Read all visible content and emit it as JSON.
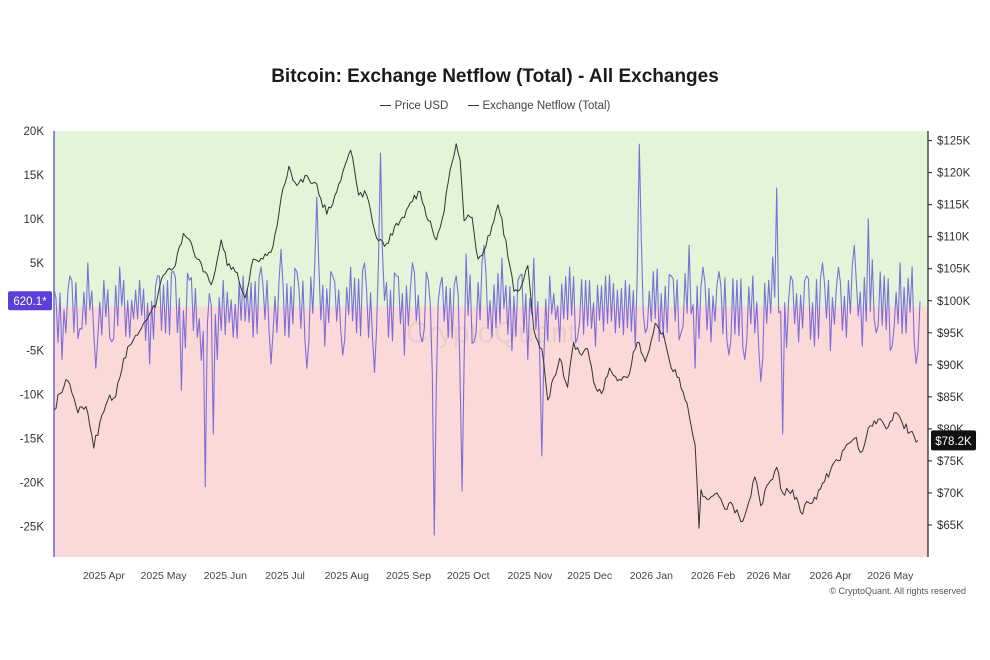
{
  "chart_data": {
    "type": "line",
    "title": "Bitcoin: Exchange Netflow (Total) - All Exchanges",
    "legend_position": "top-center",
    "grid": false,
    "series": [
      {
        "name": "Price USD",
        "axis": "right",
        "color": "#333333"
      },
      {
        "name": "Exchange Netflow (Total)",
        "axis": "left",
        "color": "#6f62d6"
      }
    ],
    "x_axis": {
      "range": [
        "2025-03-18",
        "2026-05-31"
      ],
      "ticks": [
        {
          "date": "2025-04-01",
          "label": "2025 Apr"
        },
        {
          "date": "2025-05-01",
          "label": "2025 May"
        },
        {
          "date": "2025-06-01",
          "label": "2025 Jun"
        },
        {
          "date": "2025-07-01",
          "label": "2025 Jul"
        },
        {
          "date": "2025-08-01",
          "label": "2025 Aug"
        },
        {
          "date": "2025-09-01",
          "label": "2025 Sep"
        },
        {
          "date": "2025-10-01",
          "label": "2025 Oct"
        },
        {
          "date": "2025-11-01",
          "label": "2025 Nov"
        },
        {
          "date": "2025-12-01",
          "label": "2025 Dec"
        },
        {
          "date": "2026-01-01",
          "label": "2026 Jan"
        },
        {
          "date": "2026-02-01",
          "label": "2026 Feb"
        },
        {
          "date": "2026-03-01",
          "label": "2026 Mar"
        },
        {
          "date": "2026-04-01",
          "label": "2026 Apr"
        },
        {
          "date": "2026-05-01",
          "label": "2026 May"
        }
      ]
    },
    "y_left": {
      "range": [
        -28500,
        20000
      ],
      "ticks": [
        {
          "value": 20000,
          "label": "20K"
        },
        {
          "value": 15000,
          "label": "15K"
        },
        {
          "value": 10000,
          "label": "10K"
        },
        {
          "value": 5000,
          "label": "5K"
        },
        {
          "value": -5000,
          "label": "-5K"
        },
        {
          "value": -10000,
          "label": "-10K"
        },
        {
          "value": -15000,
          "label": "-15K"
        },
        {
          "value": -20000,
          "label": "-20K"
        },
        {
          "value": -25000,
          "label": "-25K"
        }
      ],
      "zero_band": {
        "above_color": "#e3f5d8",
        "below_color": "#fcd9d9",
        "split_value": 0
      }
    },
    "y_right": {
      "range": [
        60000,
        126500
      ],
      "ticks": [
        {
          "value": 125000,
          "label": "$125K"
        },
        {
          "value": 120000,
          "label": "$120K"
        },
        {
          "value": 115000,
          "label": "$115K"
        },
        {
          "value": 110000,
          "label": "$110K"
        },
        {
          "value": 105000,
          "label": "$105K"
        },
        {
          "value": 100000,
          "label": "$100K"
        },
        {
          "value": 95000,
          "label": "$95K"
        },
        {
          "value": 90000,
          "label": "$90K"
        },
        {
          "value": 85000,
          "label": "$85K"
        },
        {
          "value": 80000,
          "label": "$80K"
        },
        {
          "value": 75000,
          "label": "$75K"
        },
        {
          "value": 70000,
          "label": "$70K"
        },
        {
          "value": 65000,
          "label": "$65K"
        }
      ]
    },
    "badges": {
      "netflow_last": {
        "label": "620.1*",
        "value": 620.1,
        "color": "#5b3fd6"
      },
      "price_last": {
        "label": "$78.2K",
        "value": 78200,
        "color": "#111111"
      }
    },
    "price_anchors": [
      [
        "2025-03-18",
        83000
      ],
      [
        "2025-03-21",
        85500
      ],
      [
        "2025-03-25",
        87500
      ],
      [
        "2025-03-30",
        82500
      ],
      [
        "2025-04-03",
        83500
      ],
      [
        "2025-04-07",
        77000
      ],
      [
        "2025-04-10",
        81000
      ],
      [
        "2025-04-14",
        84500
      ],
      [
        "2025-04-18",
        85000
      ],
      [
        "2025-04-22",
        91000
      ],
      [
        "2025-04-27",
        94000
      ],
      [
        "2025-05-02",
        96500
      ],
      [
        "2025-05-08",
        99000
      ],
      [
        "2025-05-12",
        104000
      ],
      [
        "2025-05-18",
        105500
      ],
      [
        "2025-05-22",
        110500
      ],
      [
        "2025-05-26",
        109000
      ],
      [
        "2025-06-01",
        104500
      ],
      [
        "2025-06-05",
        102500
      ],
      [
        "2025-06-10",
        109500
      ],
      [
        "2025-06-13",
        105500
      ],
      [
        "2025-06-17",
        104500
      ],
      [
        "2025-06-22",
        100500
      ],
      [
        "2025-06-26",
        106500
      ],
      [
        "2025-07-01",
        106500
      ],
      [
        "2025-07-06",
        108500
      ],
      [
        "2025-07-10",
        116000
      ],
      [
        "2025-07-14",
        121000
      ],
      [
        "2025-07-18",
        118000
      ],
      [
        "2025-07-22",
        119500
      ],
      [
        "2025-07-27",
        118500
      ],
      [
        "2025-08-02",
        113500
      ],
      [
        "2025-08-07",
        117000
      ],
      [
        "2025-08-11",
        121000
      ],
      [
        "2025-08-14",
        123500
      ],
      [
        "2025-08-18",
        116500
      ],
      [
        "2025-08-22",
        116500
      ],
      [
        "2025-08-26",
        111000
      ],
      [
        "2025-08-31",
        108500
      ],
      [
        "2025-09-05",
        111500
      ],
      [
        "2025-09-10",
        113000
      ],
      [
        "2025-09-14",
        115500
      ],
      [
        "2025-09-18",
        117000
      ],
      [
        "2025-09-22",
        112500
      ],
      [
        "2025-09-26",
        109500
      ],
      [
        "2025-09-30",
        114000
      ],
      [
        "2025-10-03",
        120500
      ],
      [
        "2025-10-06",
        124500
      ],
      [
        "2025-10-08",
        122000
      ],
      [
        "2025-10-10",
        112500
      ],
      [
        "2025-10-14",
        113000
      ],
      [
        "2025-10-17",
        106500
      ],
      [
        "2025-10-21",
        108500
      ],
      [
        "2025-10-27",
        115000
      ],
      [
        "2025-10-31",
        109500
      ],
      [
        "2025-11-04",
        101500
      ],
      [
        "2025-11-08",
        102500
      ],
      [
        "2025-11-11",
        105500
      ],
      [
        "2025-11-14",
        95500
      ],
      [
        "2025-11-18",
        92500
      ],
      [
        "2025-11-21",
        84500
      ],
      [
        "2025-11-24",
        88000
      ],
      [
        "2025-11-27",
        91000
      ],
      [
        "2025-12-01",
        86500
      ],
      [
        "2025-12-04",
        93500
      ],
      [
        "2025-12-08",
        91500
      ],
      [
        "2025-12-11",
        92500
      ],
      [
        "2025-12-15",
        86500
      ],
      [
        "2025-12-18",
        85500
      ],
      [
        "2025-12-22",
        89500
      ],
      [
        "2025-12-26",
        87500
      ],
      [
        "2025-12-31",
        88000
      ],
      [
        "2026-01-05",
        93500
      ],
      [
        "2026-01-09",
        90500
      ],
      [
        "2026-01-14",
        96500
      ],
      [
        "2026-01-18",
        95000
      ],
      [
        "2026-01-22",
        89500
      ],
      [
        "2026-01-26",
        88000
      ],
      [
        "2026-01-30",
        84000
      ],
      [
        "2026-02-03",
        77500
      ],
      [
        "2026-02-05",
        64500
      ],
      [
        "2026-02-06",
        70500
      ],
      [
        "2026-02-10",
        69000
      ],
      [
        "2026-02-14",
        70000
      ],
      [
        "2026-02-18",
        67500
      ],
      [
        "2026-02-22",
        68000
      ],
      [
        "2026-02-26",
        65500
      ],
      [
        "2026-03-01",
        67500
      ],
      [
        "2026-03-05",
        72500
      ],
      [
        "2026-03-08",
        68000
      ],
      [
        "2026-03-12",
        71500
      ],
      [
        "2026-03-16",
        74000
      ],
      [
        "2026-03-19",
        70000
      ],
      [
        "2026-03-24",
        70500
      ],
      [
        "2026-03-28",
        67000
      ],
      [
        "2026-04-01",
        68500
      ],
      [
        "2026-04-05",
        69000
      ],
      [
        "2026-04-08",
        71500
      ],
      [
        "2026-04-12",
        73500
      ],
      [
        "2026-04-16",
        75000
      ],
      [
        "2026-04-20",
        77500
      ],
      [
        "2026-04-24",
        78500
      ],
      [
        "2026-04-28",
        76500
      ],
      [
        "2026-05-02",
        80500
      ],
      [
        "2026-05-06",
        81500
      ],
      [
        "2026-05-10",
        80000
      ],
      [
        "2026-05-14",
        82500
      ],
      [
        "2026-05-18",
        81000
      ],
      [
        "2026-05-22",
        79500
      ],
      [
        "2026-05-26",
        78200
      ]
    ],
    "netflow_anchors": [
      [
        "2025-03-18",
        2000
      ],
      [
        "2025-03-22",
        -6000
      ],
      [
        "2025-03-26",
        3500
      ],
      [
        "2025-03-31",
        -2500
      ],
      [
        "2025-04-04",
        5000
      ],
      [
        "2025-04-08",
        -7000
      ],
      [
        "2025-04-12",
        3000
      ],
      [
        "2025-04-16",
        -4000
      ],
      [
        "2025-04-20",
        4500
      ],
      [
        "2025-04-25",
        -3500
      ],
      [
        "2025-04-30",
        3000
      ],
      [
        "2025-05-05",
        -6500
      ],
      [
        "2025-05-09",
        3500
      ],
      [
        "2025-05-13",
        -3000
      ],
      [
        "2025-05-17",
        4000
      ],
      [
        "2025-05-21",
        -9500
      ],
      [
        "2025-05-25",
        3000
      ],
      [
        "2025-05-29",
        -3500
      ],
      [
        "2025-06-02",
        -20500
      ],
      [
        "2025-06-04",
        1500
      ],
      [
        "2025-06-06",
        -14500
      ],
      [
        "2025-06-11",
        3000
      ],
      [
        "2025-06-16",
        -3500
      ],
      [
        "2025-06-21",
        3500
      ],
      [
        "2025-06-26",
        -3500
      ],
      [
        "2025-06-30",
        4500
      ],
      [
        "2025-07-05",
        -6500
      ],
      [
        "2025-07-10",
        6500
      ],
      [
        "2025-07-14",
        -3500
      ],
      [
        "2025-07-18",
        4000
      ],
      [
        "2025-07-23",
        -7000
      ],
      [
        "2025-07-28",
        12500
      ],
      [
        "2025-08-01",
        -4500
      ],
      [
        "2025-08-05",
        3500
      ],
      [
        "2025-08-10",
        -5500
      ],
      [
        "2025-08-14",
        4500
      ],
      [
        "2025-08-17",
        -3000
      ],
      [
        "2025-08-21",
        5000
      ],
      [
        "2025-08-26",
        -7500
      ],
      [
        "2025-08-29",
        17500
      ],
      [
        "2025-09-02",
        -3500
      ],
      [
        "2025-09-06",
        3500
      ],
      [
        "2025-09-10",
        -5500
      ],
      [
        "2025-09-14",
        5000
      ],
      [
        "2025-09-19",
        -4000
      ],
      [
        "2025-09-22",
        3000
      ],
      [
        "2025-09-25",
        -26000
      ],
      [
        "2025-09-28",
        2500
      ],
      [
        "2025-10-02",
        -3500
      ],
      [
        "2025-10-06",
        3500
      ],
      [
        "2025-10-09",
        -21000
      ],
      [
        "2025-10-11",
        6000
      ],
      [
        "2025-10-15",
        -4000
      ],
      [
        "2025-10-20",
        7000
      ],
      [
        "2025-10-24",
        -3500
      ],
      [
        "2025-10-29",
        5500
      ],
      [
        "2025-11-03",
        -5000
      ],
      [
        "2025-11-07",
        3500
      ],
      [
        "2025-11-11",
        -6000
      ],
      [
        "2025-11-14",
        5500
      ],
      [
        "2025-11-18",
        -17000
      ],
      [
        "2025-11-22",
        3500
      ],
      [
        "2025-11-27",
        -4000
      ],
      [
        "2025-12-02",
        4500
      ],
      [
        "2025-12-06",
        -3500
      ],
      [
        "2025-12-10",
        3000
      ],
      [
        "2025-12-15",
        -4500
      ],
      [
        "2025-12-20",
        3500
      ],
      [
        "2025-12-25",
        -3000
      ],
      [
        "2025-12-30",
        3000
      ],
      [
        "2026-01-04",
        -4500
      ],
      [
        "2026-01-06",
        18500
      ],
      [
        "2026-01-09",
        -3000
      ],
      [
        "2026-01-13",
        4000
      ],
      [
        "2026-01-18",
        -3500
      ],
      [
        "2026-01-22",
        3500
      ],
      [
        "2026-01-27",
        -3000
      ],
      [
        "2026-01-31",
        7000
      ],
      [
        "2026-02-03",
        -7000
      ],
      [
        "2026-02-07",
        4500
      ],
      [
        "2026-02-11",
        -4000
      ],
      [
        "2026-02-15",
        4000
      ],
      [
        "2026-02-20",
        -5500
      ],
      [
        "2026-02-24",
        3000
      ],
      [
        "2026-02-28",
        -6000
      ],
      [
        "2026-03-04",
        3500
      ],
      [
        "2026-03-08",
        -8500
      ],
      [
        "2026-03-12",
        3000
      ],
      [
        "2026-03-16",
        13500
      ],
      [
        "2026-03-19",
        -14500
      ],
      [
        "2026-03-23",
        3500
      ],
      [
        "2026-03-27",
        -4000
      ],
      [
        "2026-03-31",
        3500
      ],
      [
        "2026-04-04",
        -4500
      ],
      [
        "2026-04-08",
        5000
      ],
      [
        "2026-04-12",
        -5000
      ],
      [
        "2026-04-16",
        4500
      ],
      [
        "2026-04-20",
        -3500
      ],
      [
        "2026-04-24",
        7000
      ],
      [
        "2026-04-28",
        -4500
      ],
      [
        "2026-05-01",
        10000
      ],
      [
        "2026-05-05",
        -3000
      ],
      [
        "2026-05-09",
        3500
      ],
      [
        "2026-05-13",
        -4500
      ],
      [
        "2026-05-17",
        5000
      ],
      [
        "2026-05-20",
        -3000
      ],
      [
        "2026-05-23",
        4500
      ],
      [
        "2026-05-25",
        -6500
      ],
      [
        "2026-05-27",
        620
      ]
    ],
    "watermark": "CryptoQuant",
    "footer": "© CryptoQuant. All rights reserved"
  }
}
